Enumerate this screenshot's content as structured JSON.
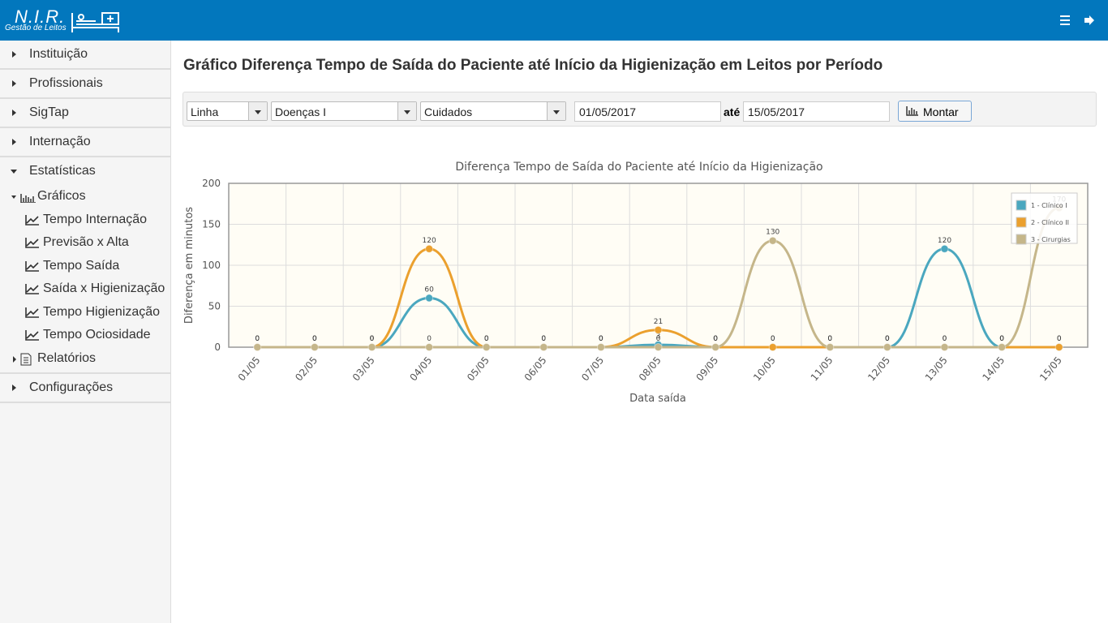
{
  "header": {
    "logo_title": "N.I.R.",
    "logo_subtitle": "Gestão de Leitos"
  },
  "sidebar": {
    "items": [
      "Instituição",
      "Profissionais",
      "SigTap",
      "Internação",
      "Estatísticas"
    ],
    "submenu": {
      "title": "Gráficos",
      "items": [
        "Tempo Internação",
        "Previsão x Alta",
        "Tempo Saída",
        "Saída x Higienização",
        "Tempo Higienização",
        "Tempo Ociosidade"
      ]
    },
    "reports": "Relatórios",
    "settings": "Configurações"
  },
  "page_title": "Gráfico Diferença Tempo de Saída do Paciente até Início da Higienização em Leitos por Período",
  "filters": {
    "chart_kind": "Linha",
    "specialty": "Doenças I",
    "unit": "Cuidados",
    "date_from": "01/05/2017",
    "until_label": "até",
    "date_to": "15/05/2017",
    "button": "Montar"
  },
  "chart_data": {
    "type": "line",
    "title": "Diferença Tempo de Saída do Paciente até Início da Higienização",
    "y_label": "Diferença em minutos",
    "x_label": "Data saída",
    "categories": [
      "01/05",
      "02/05",
      "03/05",
      "04/05",
      "05/05",
      "06/05",
      "07/05",
      "08/05",
      "09/05",
      "10/05",
      "11/05",
      "12/05",
      "13/05",
      "14/05",
      "15/05"
    ],
    "ylim": [
      0,
      200
    ],
    "yticks": [
      0,
      50,
      100,
      150,
      200
    ],
    "grid": true,
    "legend": "top-right",
    "series": [
      {
        "name": "1 - Clínico I",
        "color": "#4aa7bf",
        "values": [
          0,
          0,
          0,
          60,
          0,
          0,
          0,
          3,
          0,
          0,
          0,
          0,
          120,
          0,
          0
        ]
      },
      {
        "name": "2 - Clínico II",
        "color": "#eba02e",
        "values": [
          0,
          0,
          0,
          120,
          0,
          0,
          0,
          21,
          0,
          0,
          0,
          0,
          0,
          0,
          0
        ]
      },
      {
        "name": "3 - Cirurgias",
        "color": "#c5b68a",
        "values": [
          0,
          0,
          0,
          0,
          0,
          0,
          0,
          0,
          0,
          130,
          0,
          0,
          0,
          0,
          170
        ]
      }
    ]
  }
}
